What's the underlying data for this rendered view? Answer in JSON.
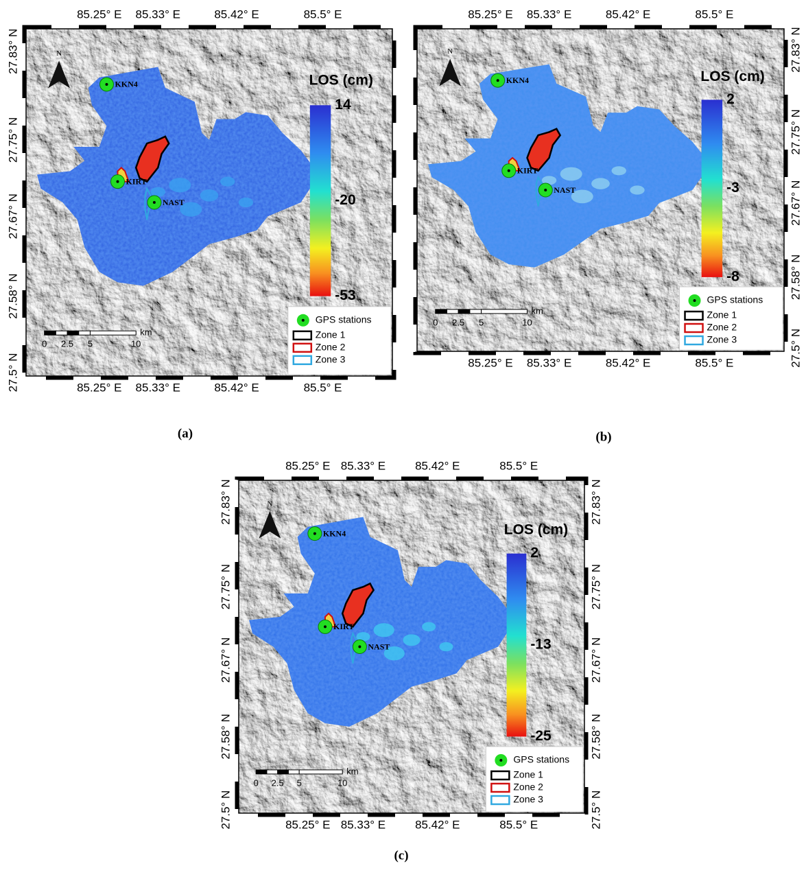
{
  "panels": [
    {
      "label": "(a)",
      "lon_labels": [
        "85.25° E",
        "85.33° E",
        "85.42° E",
        "85.5° E"
      ],
      "lat_labels": [
        "27.83° N",
        "27.75° N",
        "27.67° N",
        "27.58° N",
        "27.5° N"
      ],
      "north": "N",
      "colorbar": {
        "title": "LOS (cm)",
        "labels": [
          "14",
          "-20",
          "-53"
        ]
      },
      "stations": [
        "KKN4",
        "KIRT",
        "NAST"
      ],
      "legend": [
        "GPS stations",
        "Zone 1",
        "Zone 2",
        "Zone 3"
      ],
      "scale": {
        "labels": [
          "0",
          "2.5",
          "5",
          "10"
        ],
        "unit": "km"
      }
    },
    {
      "label": "(b)",
      "lon_labels": [
        "85.25° E",
        "85.33° E",
        "85.42° E",
        "85.5° E"
      ],
      "lat_labels": [
        "27.83° N",
        "27.75° N",
        "27.67° N",
        "27.58° N",
        "27.5° N"
      ],
      "north": "N",
      "colorbar": {
        "title": "LOS (cm)",
        "labels": [
          "2",
          "-3",
          "-8"
        ]
      },
      "stations": [
        "KKN4",
        "KIRT",
        "NAST"
      ],
      "legend": [
        "GPS stations",
        "Zone 1",
        "Zone 2",
        "Zone 3"
      ],
      "scale": {
        "labels": [
          "0",
          "2.5",
          "5",
          "10"
        ],
        "unit": "km"
      }
    },
    {
      "label": "(c)",
      "lon_labels": [
        "85.25° E",
        "85.33° E",
        "85.42° E",
        "85.5° E"
      ],
      "lat_labels": [
        "27.83° N",
        "27.75° N",
        "27.67° N",
        "27.58° N",
        "27.5° N"
      ],
      "north": "N",
      "colorbar": {
        "title": "LOS (cm)",
        "labels": [
          "2",
          "-13",
          "-25"
        ]
      },
      "stations": [
        "KKN4",
        "KIRT",
        "NAST"
      ],
      "legend": [
        "GPS stations",
        "Zone 1",
        "Zone 2",
        "Zone 3"
      ],
      "scale": {
        "labels": [
          "0",
          "2.5",
          "5",
          "10"
        ],
        "unit": "km"
      }
    }
  ]
}
